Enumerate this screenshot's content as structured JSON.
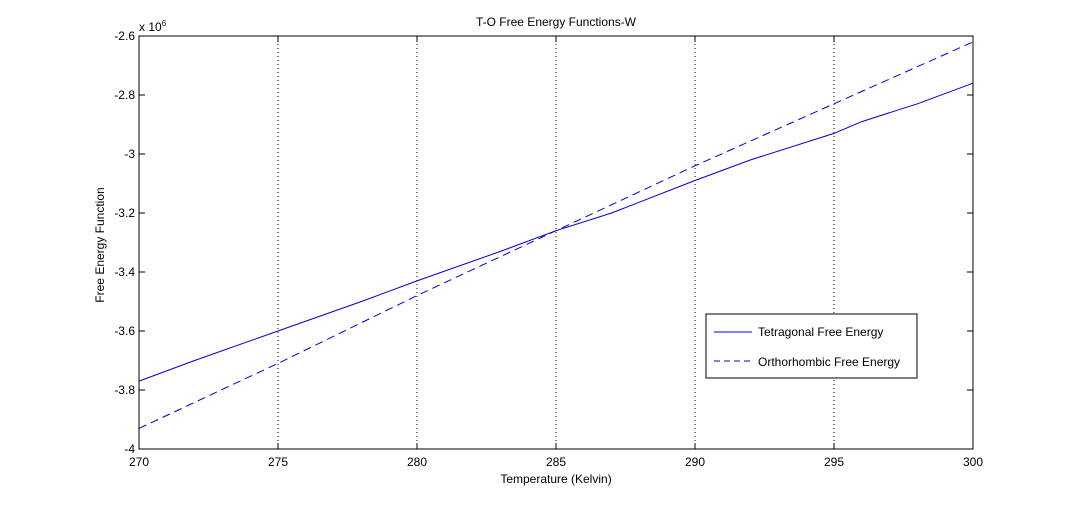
{
  "chart_data": {
    "type": "line",
    "title": "T-O Free Energy Functions-W",
    "xlabel": "Temperature (Kelvin)",
    "ylabel": "Free Energy Function",
    "y_exponent_label": "x 10",
    "y_exponent_power": "6",
    "xlim": [
      270,
      300
    ],
    "ylim": [
      -4.0,
      -2.6
    ],
    "x_ticks": [
      270,
      275,
      280,
      285,
      290,
      295,
      300
    ],
    "x_tick_labels": [
      "270",
      "275",
      "280",
      "285",
      "290",
      "295",
      "300"
    ],
    "y_ticks": [
      -4.0,
      -3.8,
      -3.6,
      -3.4,
      -3.2,
      -3.0,
      -2.8,
      -2.6
    ],
    "y_tick_labels": [
      "-4",
      "-3.8",
      "-3.6",
      "-3.4",
      "-3.2",
      "-3",
      "-2.8",
      "-2.6"
    ],
    "grid": "vertical dotted at x ticks",
    "legend_position": "lower-right",
    "series": [
      {
        "name": "Tetragonal Free Energy",
        "color": "#0000cc",
        "style": "solid",
        "x": [
          270,
          272,
          275,
          278,
          280,
          283,
          285,
          287,
          290,
          292,
          295,
          296,
          298,
          300
        ],
        "y": [
          -3.77,
          -3.7,
          -3.6,
          -3.5,
          -3.43,
          -3.33,
          -3.26,
          -3.2,
          -3.09,
          -3.02,
          -2.93,
          -2.89,
          -2.83,
          -2.76
        ]
      },
      {
        "name": "Orthorhombic Free Energy",
        "color": "#0000cc",
        "style": "dashed",
        "x": [
          270,
          275,
          280,
          285,
          290,
          295,
          300
        ],
        "y": [
          -3.93,
          -3.71,
          -3.48,
          -3.26,
          -3.04,
          -2.83,
          -2.62
        ]
      }
    ]
  }
}
